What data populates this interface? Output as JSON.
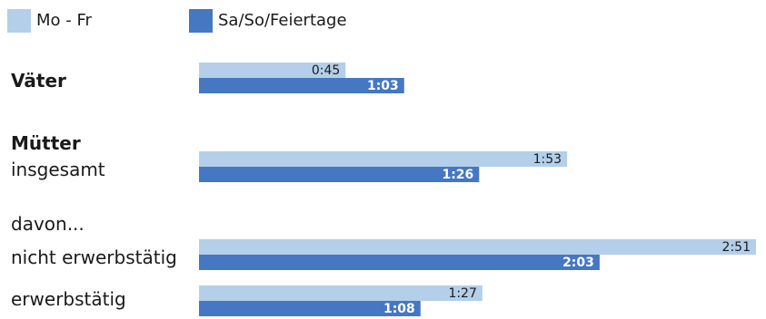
{
  "legend": {
    "items": [
      {
        "label": "Mo - Fr",
        "color": "#b3cfea"
      },
      {
        "label": "Sa/So/Feiertage",
        "color": "#4577c3"
      }
    ]
  },
  "row_labels": [
    "Väter",
    "Mütter",
    "insgesamt",
    "davon...",
    "nicht erwerbstätig",
    "erwerbstätig"
  ],
  "chart_data": {
    "type": "bar",
    "orientation": "horizontal",
    "unit": "h:mm",
    "categories": [
      "Väter",
      "Mütter insgesamt",
      "nicht erwerbstätig",
      "erwerbstätig"
    ],
    "series": [
      {
        "name": "Mo - Fr",
        "color": "#b3cfea",
        "label_color": "#1a1a1a",
        "values_min": [
          45,
          113,
          171,
          87
        ],
        "labels": [
          "0:45",
          "1:53",
          "2:51",
          "1:27"
        ]
      },
      {
        "name": "Sa/So/Feiertage",
        "color": "#4577c3",
        "label_color": "#ffffff",
        "values_min": [
          63,
          86,
          123,
          68
        ],
        "labels": [
          "1:03",
          "1:26",
          "2:03",
          "1:08"
        ]
      }
    ],
    "xlim": [
      0,
      171
    ],
    "grid": false,
    "legend_position": "top-left"
  }
}
